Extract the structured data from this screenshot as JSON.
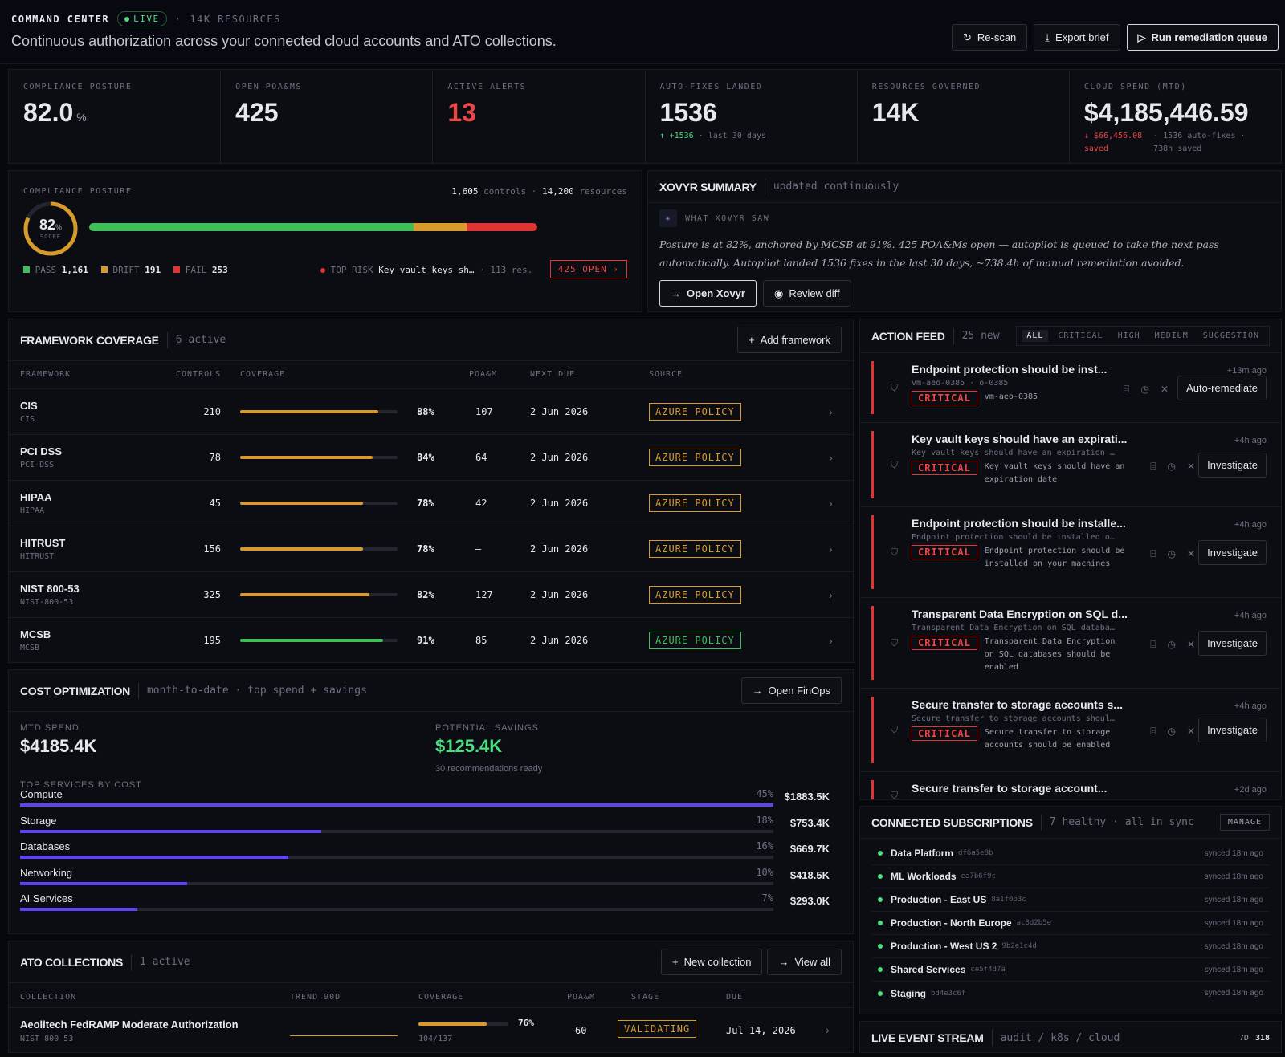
{
  "header": {
    "brand": "COMMAND CENTER",
    "live": "LIVE",
    "sep": "·",
    "resources": "14K RESOURCES",
    "subtitle": "Continuous authorization across your connected cloud accounts and ATO collections.",
    "buttons": {
      "rescan": "Re-scan",
      "export": "Export brief",
      "run": "Run remediation queue"
    }
  },
  "kpis": {
    "posture": {
      "label": "COMPLIANCE POSTURE",
      "value": "82.0",
      "unit": "%"
    },
    "poams": {
      "label": "OPEN POA&MS",
      "value": "425"
    },
    "alerts": {
      "label": "ACTIVE ALERTS",
      "value": "13"
    },
    "autofix": {
      "label": "AUTO-FIXES LANDED",
      "value": "1536",
      "delta": "↑ +1536",
      "sub": "· last 30 days"
    },
    "resources": {
      "label": "RESOURCES GOVERNED",
      "value": "14K"
    },
    "spend": {
      "label": "CLOUD SPEND (MTD)",
      "value": "$4,185,446.59",
      "delta": "↓ $66,456.08",
      "delta2": "saved",
      "sub": "· 1536 auto-fixes ·",
      "sub2": "738h saved"
    }
  },
  "posture": {
    "label": "COMPLIANCE POSTURE",
    "controls": "1,605",
    "controls_label": "controls",
    "sep": "·",
    "resources": "14,200",
    "resources_label": "resources",
    "score": "82",
    "score_unit": "%",
    "score_label": "SCORE",
    "score_fraction": 0.82,
    "pass_label": "PASS",
    "pass": "1,161",
    "pass_value": 1161,
    "drift_label": "DRIFT",
    "drift": "191",
    "drift_value": 191,
    "fail_label": "FAIL",
    "fail": "253",
    "fail_value": 253,
    "top_risk_label": "TOP RISK",
    "top_risk": "Key vault keys sh…",
    "top_risk_res": "· 113 res.",
    "open_btn": "425 OPEN ›",
    "colors": {
      "pass": "#3fbf5a",
      "drift": "#d89a2a",
      "fail": "#e03434"
    }
  },
  "summary": {
    "title": "XOVYR SUMMARY",
    "meta": "updated continuously",
    "saw_label": "WHAT XOVYR SAW",
    "text": "Posture is at 82%, anchored by MCSB at 91%. 425 POA&Ms open — autopilot is queued to take the next pass automatically. Autopilot landed 1536 fixes in the last 30 days, ~738.4h of manual remediation avoided.",
    "open_btn": "Open Xovyr",
    "diff_btn": "Review diff"
  },
  "frameworks": {
    "title": "FRAMEWORK COVERAGE",
    "meta": "6 active",
    "add_btn": "Add framework",
    "cols": [
      "FRAMEWORK",
      "CONTROLS",
      "COVERAGE",
      "POA&M",
      "NEXT DUE",
      "SOURCE"
    ],
    "rows": [
      {
        "name": "CIS",
        "code": "CIS",
        "controls": "210",
        "coverage": "88%",
        "cov": 0.88,
        "poam": "107",
        "due": "2 Jun 2026",
        "source": "AZURE POLICY",
        "color": "#d89a2a"
      },
      {
        "name": "PCI DSS",
        "code": "PCI-DSS",
        "controls": "78",
        "coverage": "84%",
        "cov": 0.84,
        "poam": "64",
        "due": "2 Jun 2026",
        "source": "AZURE POLICY",
        "color": "#d89a2a"
      },
      {
        "name": "HIPAA",
        "code": "HIPAA",
        "controls": "45",
        "coverage": "78%",
        "cov": 0.78,
        "poam": "42",
        "due": "2 Jun 2026",
        "source": "AZURE POLICY",
        "color": "#d89a2a"
      },
      {
        "name": "HITRUST",
        "code": "HITRUST",
        "controls": "156",
        "coverage": "78%",
        "cov": 0.78,
        "poam": "—",
        "due": "2 Jun 2026",
        "source": "AZURE POLICY",
        "color": "#d89a2a"
      },
      {
        "name": "NIST 800-53",
        "code": "NIST-800-53",
        "controls": "325",
        "coverage": "82%",
        "cov": 0.82,
        "poam": "127",
        "due": "2 Jun 2026",
        "source": "AZURE POLICY",
        "color": "#d89a2a"
      },
      {
        "name": "MCSB",
        "code": "MCSB",
        "controls": "195",
        "coverage": "91%",
        "cov": 0.91,
        "poam": "85",
        "due": "2 Jun 2026",
        "source": "AZURE POLICY",
        "color": "#3fbf5a"
      }
    ]
  },
  "cost": {
    "title": "COST OPTIMIZATION",
    "meta": "month-to-date · top spend + savings",
    "open_btn": "Open FinOps",
    "mtd_label": "MTD SPEND",
    "mtd": "$4185.4K",
    "sav_label": "POTENTIAL SAVINGS",
    "sav": "$125.4K",
    "sav_sub": "30 recommendations ready",
    "top_label": "TOP SERVICES BY COST",
    "services": [
      {
        "name": "Compute",
        "pct": "45%",
        "amt": "$1883.5K",
        "share": 1.0
      },
      {
        "name": "Storage",
        "pct": "18%",
        "amt": "$753.4K",
        "share": 0.4
      },
      {
        "name": "Databases",
        "pct": "16%",
        "amt": "$669.7K",
        "share": 0.356
      },
      {
        "name": "Networking",
        "pct": "10%",
        "amt": "$418.5K",
        "share": 0.222
      },
      {
        "name": "AI Services",
        "pct": "7%",
        "amt": "$293.0K",
        "share": 0.156
      }
    ]
  },
  "ato": {
    "title": "ATO COLLECTIONS",
    "meta": "1 active",
    "new_btn": "New collection",
    "view_btn": "View all",
    "cols": [
      "COLLECTION",
      "TREND 90D",
      "COVERAGE",
      "POA&M",
      "STAGE",
      "DUE"
    ],
    "rows": [
      {
        "name": "Aeolitech FedRAMP Moderate Authorization",
        "code": "NIST 800 53",
        "coverage": "76%",
        "cov": 0.76,
        "cov_sub": "104/137",
        "poam": "60",
        "stage": "VALIDATING",
        "due": "Jul 14, 2026"
      }
    ]
  },
  "feed": {
    "title": "ACTION FEED",
    "meta": "25 new",
    "tabs": [
      "ALL",
      "CRITICAL",
      "HIGH",
      "MEDIUM",
      "SUGGESTION"
    ],
    "items": [
      {
        "title": "Endpoint protection should be inst...",
        "sub": "vm-aeo-0385 · o-0385",
        "sev": "CRITICAL",
        "desc": "vm-aeo-0385",
        "ago": "+13m ago",
        "btn": "Auto-remediate"
      },
      {
        "title": "Key vault keys should have an expirati...",
        "sub": "Key vault keys should have an expiration …",
        "sev": "CRITICAL",
        "desc": "Key vault keys should have an expiration date",
        "ago": "+4h ago",
        "btn": "Investigate"
      },
      {
        "title": "Endpoint protection should be installe...",
        "sub": "Endpoint protection should be installed o…",
        "sev": "CRITICAL",
        "desc": "Endpoint protection should be installed on your machines",
        "ago": "+4h ago",
        "btn": "Investigate"
      },
      {
        "title": "Transparent Data Encryption on SQL d...",
        "sub": "Transparent Data Encryption on SQL databa…",
        "sev": "CRITICAL",
        "desc": "Transparent Data Encryption on SQL databases should be enabled",
        "ago": "+4h ago",
        "btn": "Investigate"
      },
      {
        "title": "Secure transfer to storage accounts s...",
        "sub": "Secure transfer to storage accounts shoul…",
        "sev": "CRITICAL",
        "desc": "Secure transfer to storage accounts should be enabled",
        "ago": "+4h ago",
        "btn": "Investigate"
      },
      {
        "title": "Secure transfer to storage account...",
        "sub": "",
        "sev": "",
        "desc": "",
        "ago": "+2d ago",
        "btn": ""
      }
    ]
  },
  "subs": {
    "title": "CONNECTED SUBSCRIPTIONS",
    "meta": "7 healthy · all in sync",
    "manage": "MANAGE",
    "items": [
      {
        "name": "Data Platform",
        "id": "df6a5e8b",
        "sync": "synced 18m ago"
      },
      {
        "name": "ML Workloads",
        "id": "ea7b6f9c",
        "sync": "synced 18m ago"
      },
      {
        "name": "Production - East US",
        "id": "8a1f0b3c",
        "sync": "synced 18m ago"
      },
      {
        "name": "Production - North Europe",
        "id": "ac3d2b5e",
        "sync": "synced 18m ago"
      },
      {
        "name": "Production - West US 2",
        "id": "9b2e1c4d",
        "sync": "synced 18m ago"
      },
      {
        "name": "Shared Services",
        "id": "ce5f4d7a",
        "sync": "synced 18m ago"
      },
      {
        "name": "Staging",
        "id": "bd4e3c6f",
        "sync": "synced 18m ago"
      }
    ]
  },
  "stream": {
    "title": "LIVE EVENT STREAM",
    "meta": "audit / k8s / cloud",
    "range": "7D",
    "count": "318"
  }
}
